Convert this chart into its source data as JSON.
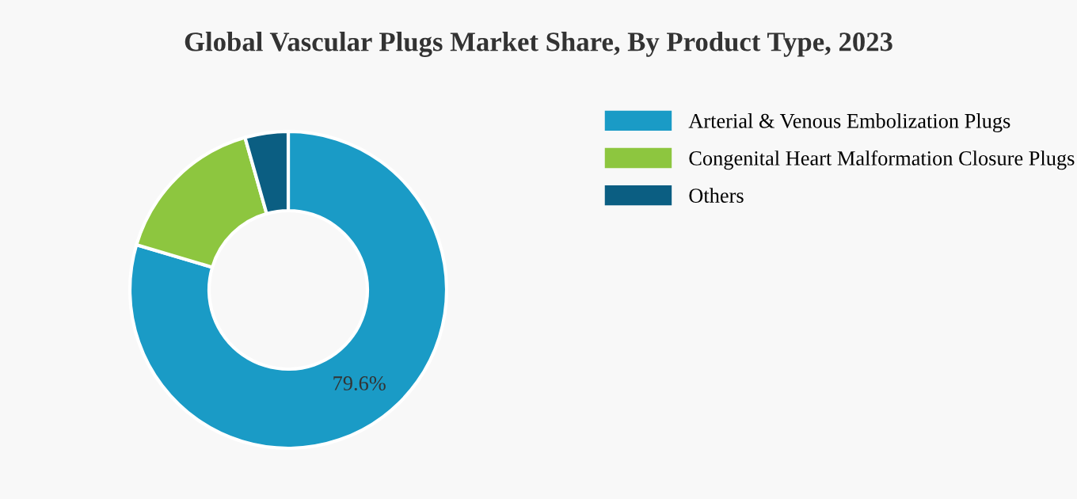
{
  "chart_data": {
    "type": "donut",
    "title": "Global Vascular Plugs Market Share, By Product Type, 2023",
    "categories": [
      "Arterial & Venous Embolization Plugs",
      "Congenital Heart Malformation Closure Plugs",
      "Others"
    ],
    "values": [
      79.6,
      16.0,
      4.4
    ],
    "colors": [
      "#1a9bc6",
      "#8dc63f",
      "#0b5e82"
    ],
    "value_labels": [
      "79.6%",
      null,
      null
    ],
    "legend": "right"
  }
}
